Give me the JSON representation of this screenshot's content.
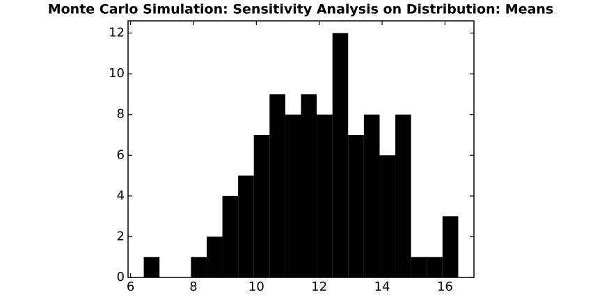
{
  "chart_data": {
    "type": "histogram",
    "title": "Monte Carlo Simulation: Sensitivity Analysis on Distribution: Means",
    "bins": [
      6.42,
      6.92,
      7.42,
      7.92,
      8.42,
      8.92,
      9.42,
      9.92,
      10.42,
      10.92,
      11.42,
      11.92,
      12.42,
      12.92,
      13.42,
      13.92,
      14.42,
      14.92,
      15.42,
      15.92,
      16.42
    ],
    "values": [
      1,
      0,
      0,
      1,
      2,
      4,
      5,
      7,
      9,
      8,
      9,
      8,
      12,
      7,
      8,
      6,
      8,
      1,
      1,
      3
    ],
    "color": "#000000",
    "xlim": [
      5.92,
      16.92
    ],
    "xticks": [
      6,
      8,
      10,
      12,
      14,
      16
    ],
    "ylim": [
      0,
      12.6
    ],
    "yticks": [
      0,
      2,
      4,
      6,
      8,
      10,
      12
    ],
    "grid": false,
    "tick_direction": "in"
  }
}
